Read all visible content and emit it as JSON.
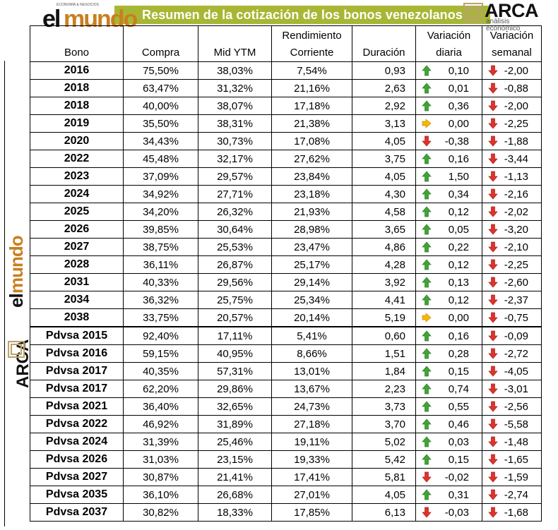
{
  "banner": {
    "title": "Resumen de la cotización de los bonos venezolanos",
    "title_bg_color": "#a7b734",
    "left_logo": {
      "top_text": "ECONOMÍA & NEGOCIOS",
      "el": "el",
      "mundo": "mundo",
      "mundo_color": "#c97f1f"
    },
    "right_logo": {
      "name": "ARCA",
      "subtitle": "análisis económico"
    }
  },
  "columns": [
    "Bono",
    "Compra",
    "Mid YTM",
    "Rendimiento Corriente",
    "Duración",
    "Variación diaria",
    "Variación semanal"
  ],
  "columns_lines": [
    [
      "Bono"
    ],
    [
      "Compra"
    ],
    [
      "Mid YTM"
    ],
    [
      "Rendimiento",
      "Corriente"
    ],
    [
      "Duración"
    ],
    [
      "Variación",
      "diaria"
    ],
    [
      "Variación",
      "semanal"
    ]
  ],
  "arrow_colors": {
    "up": "#3fa535",
    "down": "#e0322b",
    "flat": "#f5b800"
  },
  "rows": [
    {
      "bono": "2016",
      "compra": "75,50%",
      "ytm": "38,03%",
      "rend": "7,54%",
      "dur": "0,93",
      "vd": "0,10",
      "vd_dir": "up",
      "vs": "-2,00",
      "vs_dir": "down"
    },
    {
      "bono": "2018",
      "compra": "63,47%",
      "ytm": "31,32%",
      "rend": "21,16%",
      "dur": "2,63",
      "vd": "0,01",
      "vd_dir": "up",
      "vs": "-0,88",
      "vs_dir": "down"
    },
    {
      "bono": "2018",
      "compra": "40,00%",
      "ytm": "38,07%",
      "rend": "17,18%",
      "dur": "2,92",
      "vd": "0,36",
      "vd_dir": "up",
      "vs": "-2,00",
      "vs_dir": "down"
    },
    {
      "bono": "2019",
      "compra": "35,50%",
      "ytm": "38,31%",
      "rend": "21,38%",
      "dur": "3,13",
      "vd": "0,00",
      "vd_dir": "flat",
      "vs": "-2,25",
      "vs_dir": "down"
    },
    {
      "bono": "2020",
      "compra": "34,43%",
      "ytm": "30,73%",
      "rend": "17,08%",
      "dur": "4,05",
      "vd": "-0,38",
      "vd_dir": "down",
      "vs": "-1,88",
      "vs_dir": "down"
    },
    {
      "bono": "2022",
      "compra": "45,48%",
      "ytm": "32,17%",
      "rend": "27,62%",
      "dur": "3,75",
      "vd": "0,16",
      "vd_dir": "up",
      "vs": "-3,44",
      "vs_dir": "down"
    },
    {
      "bono": "2023",
      "compra": "37,09%",
      "ytm": "29,57%",
      "rend": "23,84%",
      "dur": "4,05",
      "vd": "1,50",
      "vd_dir": "up",
      "vs": "-1,13",
      "vs_dir": "down"
    },
    {
      "bono": "2024",
      "compra": "34,92%",
      "ytm": "27,71%",
      "rend": "23,18%",
      "dur": "4,30",
      "vd": "0,34",
      "vd_dir": "up",
      "vs": "-2,16",
      "vs_dir": "down"
    },
    {
      "bono": "2025",
      "compra": "34,20%",
      "ytm": "26,32%",
      "rend": "21,93%",
      "dur": "4,58",
      "vd": "0,12",
      "vd_dir": "up",
      "vs": "-2,02",
      "vs_dir": "down"
    },
    {
      "bono": "2026",
      "compra": "39,85%",
      "ytm": "30,64%",
      "rend": "28,98%",
      "dur": "3,65",
      "vd": "0,05",
      "vd_dir": "up",
      "vs": "-3,20",
      "vs_dir": "down"
    },
    {
      "bono": "2027",
      "compra": "38,75%",
      "ytm": "25,53%",
      "rend": "23,47%",
      "dur": "4,86",
      "vd": "0,22",
      "vd_dir": "up",
      "vs": "-2,10",
      "vs_dir": "down"
    },
    {
      "bono": "2028",
      "compra": "36,11%",
      "ytm": "26,87%",
      "rend": "25,17%",
      "dur": "4,28",
      "vd": "0,12",
      "vd_dir": "up",
      "vs": "-2,25",
      "vs_dir": "down"
    },
    {
      "bono": "2031",
      "compra": "40,33%",
      "ytm": "29,56%",
      "rend": "29,14%",
      "dur": "3,92",
      "vd": "0,13",
      "vd_dir": "up",
      "vs": "-2,60",
      "vs_dir": "down"
    },
    {
      "bono": "2034",
      "compra": "36,32%",
      "ytm": "25,75%",
      "rend": "25,34%",
      "dur": "4,41",
      "vd": "0,12",
      "vd_dir": "up",
      "vs": "-2,37",
      "vs_dir": "down"
    },
    {
      "bono": "2038",
      "compra": "33,75%",
      "ytm": "20,57%",
      "rend": "20,14%",
      "dur": "5,19",
      "vd": "0,00",
      "vd_dir": "flat",
      "vs": "-0,75",
      "vs_dir": "down"
    },
    {
      "bono": "Pdvsa 2015",
      "compra": "92,40%",
      "ytm": "17,11%",
      "rend": "5,41%",
      "dur": "0,60",
      "vd": "0,16",
      "vd_dir": "up",
      "vs": "-0,09",
      "vs_dir": "down",
      "sep": true
    },
    {
      "bono": "Pdvsa 2016",
      "compra": "59,15%",
      "ytm": "40,95%",
      "rend": "8,66%",
      "dur": "1,51",
      "vd": "0,28",
      "vd_dir": "up",
      "vs": "-2,72",
      "vs_dir": "down"
    },
    {
      "bono": "Pdvsa 2017",
      "compra": "40,35%",
      "ytm": "57,31%",
      "rend": "13,01%",
      "dur": "1,84",
      "vd": "0,15",
      "vd_dir": "up",
      "vs": "-4,05",
      "vs_dir": "down"
    },
    {
      "bono": "Pdvsa 2017",
      "compra": "62,20%",
      "ytm": "29,86%",
      "rend": "13,67%",
      "dur": "2,23",
      "vd": "0,74",
      "vd_dir": "up",
      "vs": "-3,01",
      "vs_dir": "down"
    },
    {
      "bono": "Pdvsa 2021",
      "compra": "36,40%",
      "ytm": "32,65%",
      "rend": "24,73%",
      "dur": "3,73",
      "vd": "0,55",
      "vd_dir": "up",
      "vs": "-2,56",
      "vs_dir": "down"
    },
    {
      "bono": "Pdvsa 2022",
      "compra": "46,92%",
      "ytm": "31,89%",
      "rend": "27,18%",
      "dur": "3,70",
      "vd": "0,46",
      "vd_dir": "up",
      "vs": "-5,58",
      "vs_dir": "down"
    },
    {
      "bono": "Pdvsa 2024",
      "compra": "31,39%",
      "ytm": "25,46%",
      "rend": "19,11%",
      "dur": "5,02",
      "vd": "0,03",
      "vd_dir": "up",
      "vs": "-1,48",
      "vs_dir": "down"
    },
    {
      "bono": "Pdvsa 2026",
      "compra": "31,03%",
      "ytm": "23,15%",
      "rend": "19,33%",
      "dur": "5,42",
      "vd": "0,15",
      "vd_dir": "up",
      "vs": "-1,65",
      "vs_dir": "down"
    },
    {
      "bono": "Pdvsa 2027",
      "compra": "30,87%",
      "ytm": "21,41%",
      "rend": "17,41%",
      "dur": "5,81",
      "vd": "-0,02",
      "vd_dir": "down",
      "vs": "-1,59",
      "vs_dir": "down"
    },
    {
      "bono": "Pdvsa 2035",
      "compra": "36,10%",
      "ytm": "26,68%",
      "rend": "27,01%",
      "dur": "4,05",
      "vd": "0,31",
      "vd_dir": "up",
      "vs": "-2,74",
      "vs_dir": "down"
    },
    {
      "bono": "Pdvsa 2037",
      "compra": "30,82%",
      "ytm": "18,33%",
      "rend": "17,85%",
      "dur": "6,13",
      "vd": "-0,03",
      "vd_dir": "down",
      "vs": "-1,68",
      "vs_dir": "down"
    }
  ]
}
